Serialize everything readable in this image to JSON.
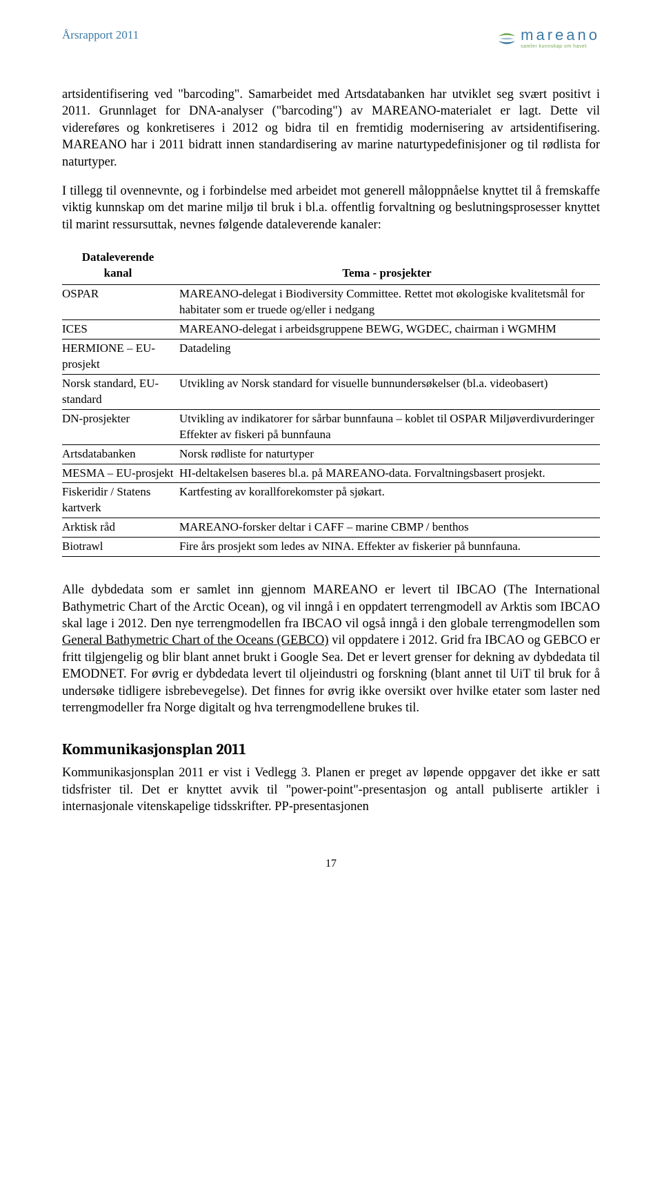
{
  "header": {
    "title": "Årsrapport 2011",
    "logo_word": "mareano",
    "logo_sub": "samler kunnskap om havet",
    "logo_colors": {
      "top": "#6fa84f",
      "bottom": "#3b7aa6"
    }
  },
  "paragraphs": {
    "p1": "artsidentifisering ved \"barcoding\". Samarbeidet med Artsdatabanken har utviklet seg svært positivt i 2011. Grunnlaget for DNA-analyser (\"barcoding\") av MAREANO-materialet er lagt. Dette vil videreføres og konkretiseres i 2012 og bidra til en fremtidig modernisering av artsidentifisering. MAREANO har i 2011 bidratt innen standardisering av marine naturtypedefinisjoner og til rødlista for naturtyper.",
    "p2": "I tillegg til ovennevnte, og i forbindelse med arbeidet mot generell måloppnåelse knyttet til å fremskaffe viktig kunnskap om det marine miljø til bruk i bl.a. offentlig forvaltning og beslutningsprosesser knyttet til marint ressursuttak, nevnes følgende dataleverende kanaler:",
    "p3a": "Alle dybdedata som er samlet inn gjennom MAREANO er levert til IBCAO (The International Bathymetric Chart of the Arctic Ocean), og vil inngå i en oppdatert terrengmodell av Arktis som IBCAO skal lage i 2012. Den nye terrengmodellen fra IBCAO vil også inngå i den globale terrengmodellen som ",
    "p3_link": "General Bathymetric Chart of the Oceans (GEBCO)",
    "p3b": " vil oppdatere i 2012. Grid fra IBCAO og GEBCO er fritt tilgjengelig og blir blant annet brukt i Google Sea. Det er levert grenser for dekning av dybdedata til EMODNET. For øvrig er dybdedata levert til oljeindustri og forskning (blant annet til UiT til bruk for å undersøke tidligere isbrebevegelse). Det finnes for øvrig ikke oversikt over hvilke etater som laster ned terrengmodeller fra Norge digitalt og hva terrengmodellene brukes til."
  },
  "table": {
    "head_col1_line1": "Dataleverende",
    "head_col1_line2": "kanal",
    "head_col2": "Tema - prosjekter",
    "rows": [
      {
        "c1": "OSPAR",
        "c2": "MAREANO-delegat i Biodiversity Committee. Rettet mot økologiske kvalitetsmål for habitater som er truede og/eller i nedgang"
      },
      {
        "c1": "ICES",
        "c2": "MAREANO-delegat i arbeidsgruppene BEWG, WGDEC, chairman i WGMHM",
        "justify": true
      },
      {
        "c1": "HERMIONE – EU-prosjekt",
        "c2": "Datadeling"
      },
      {
        "c1": "Norsk standard, EU-standard",
        "c2": "Utvikling av Norsk standard for visuelle bunnundersøkelser (bl.a. videobasert)"
      },
      {
        "c1": "DN-prosjekter",
        "c2": "Utvikling av indikatorer for sårbar bunnfauna – koblet til OSPAR Miljøverdivurderinger\nEffekter av fiskeri på bunnfauna"
      },
      {
        "c1": "Artsdatabanken",
        "c2": "Norsk rødliste for naturtyper"
      },
      {
        "c1": "MESMA – EU-prosjekt",
        "c2": "HI-deltakelsen baseres bl.a. på MAREANO-data. Forvaltningsbasert prosjekt."
      },
      {
        "c1": "Fiskeridir / Statens kartverk",
        "c2": "Kartfesting av korallforekomster på sjøkart."
      },
      {
        "c1": "Arktisk råd",
        "c2": "MAREANO-forsker deltar i CAFF – marine CBMP / benthos"
      },
      {
        "c1": "Biotrawl",
        "c2": "Fire års prosjekt som ledes av NINA. Effekter av fiskerier på bunnfauna."
      }
    ]
  },
  "section": {
    "heading": "Kommunikasjonsplan 2011",
    "body": "Kommunikasjonsplan 2011 er vist i Vedlegg 3. Planen er preget av løpende oppgaver det ikke er satt tidsfrister til. Det er knyttet avvik til \"power-point\"-presentasjon og antall publiserte artikler i internasjonale vitenskapelige tidsskrifter. PP-presentasjonen"
  },
  "page_number": "17"
}
